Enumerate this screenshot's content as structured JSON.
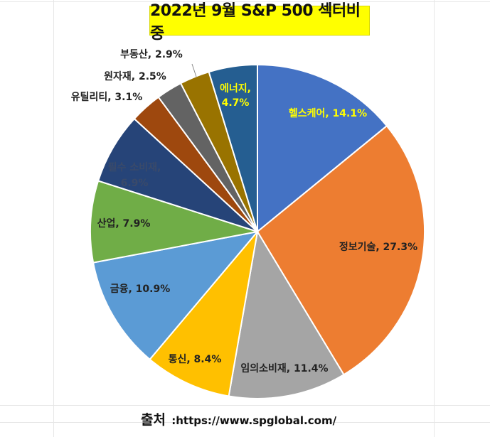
{
  "chart_data": {
    "type": "pie",
    "title": "2022년 9월 S&P 500 섹터비중",
    "start_angle_deg": 0,
    "direction": "clockwise",
    "slices": [
      {
        "label": "헬스케어",
        "value": 14.1,
        "display": "헬스케어, 14.1%",
        "color": "#4472c4",
        "label_color": "#ffff00"
      },
      {
        "label": "정보기술",
        "value": 27.3,
        "display": "정보기술, 27.3%",
        "color": "#ed7d31",
        "label_color": "#222222"
      },
      {
        "label": "임의소비재",
        "value": 11.4,
        "display": "임의소비재, 11.4%",
        "color": "#a5a5a5",
        "label_color": "#222222"
      },
      {
        "label": "통신",
        "value": 8.4,
        "display": "통신, 8.4%",
        "color": "#ffc000",
        "label_color": "#222222"
      },
      {
        "label": "금융",
        "value": 10.9,
        "display": "금융, 10.9%",
        "color": "#5b9bd5",
        "label_color": "#222222"
      },
      {
        "label": "산업",
        "value": 7.9,
        "display": "산업, 7.9%",
        "color": "#70ad47",
        "label_color": "#222222"
      },
      {
        "label": "필수 소비재",
        "value": 6.9,
        "display": "필수 소비재, 6.9%",
        "color": "#264478",
        "label_color": "#3a4a6a"
      },
      {
        "label": "유틸리티",
        "value": 3.1,
        "display": "유틸리티, 3.1%",
        "color": "#9e480e",
        "label_color": "#222222"
      },
      {
        "label": "원자재",
        "value": 2.5,
        "display": "원자재, 2.5%",
        "color": "#636363",
        "label_color": "#222222"
      },
      {
        "label": "부동산",
        "value": 2.9,
        "display": "부동산, 2.9%",
        "color": "#997300",
        "label_color": "#222222"
      },
      {
        "label": "에너지",
        "value": 4.7,
        "display": "에너지, 4.7%",
        "color": "#255e91",
        "label_color": "#ffff00"
      }
    ]
  },
  "source": {
    "label": "출처",
    "url": ":https://www.spglobal.com/"
  }
}
